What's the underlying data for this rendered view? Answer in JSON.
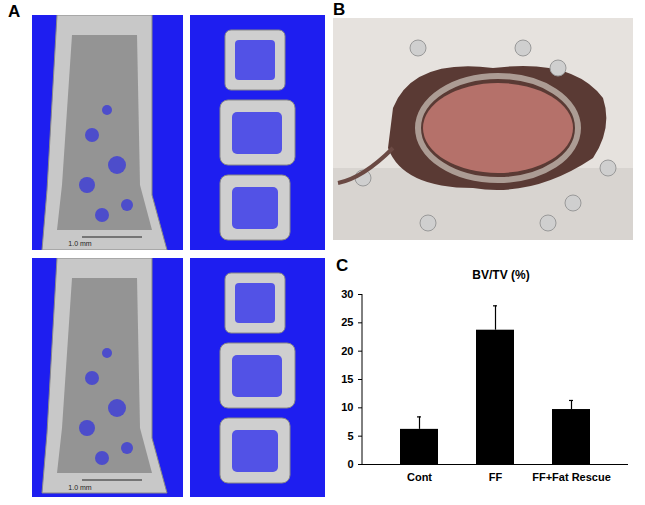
{
  "figure": {
    "panel_labels": [
      "A",
      "B",
      "C"
    ],
    "scale_bars": [
      "1.0 mm",
      "1.0 mm"
    ]
  },
  "chart_data": {
    "type": "bar",
    "title": "BV/TV (%)",
    "categories": [
      "Cont",
      "FF",
      "FF+Fat Rescue"
    ],
    "values": [
      6.2,
      23.7,
      9.7
    ],
    "errors": [
      2.2,
      4.3,
      1.6
    ],
    "color": "#000000",
    "ylim": [
      0,
      30
    ],
    "yticks": [
      0,
      5,
      10,
      15,
      20,
      25,
      30
    ],
    "grid": false
  }
}
